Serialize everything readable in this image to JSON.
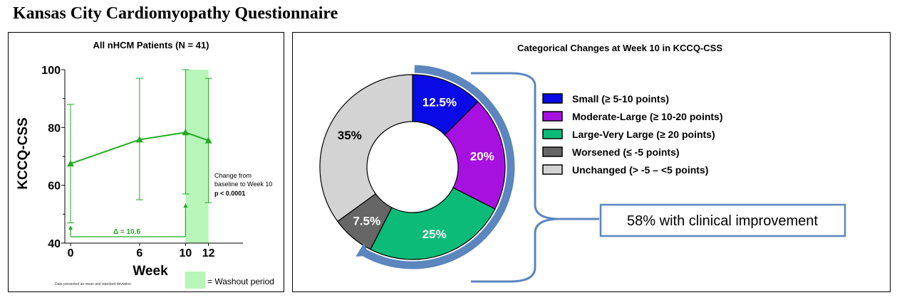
{
  "page_title": "Kansas City Cardiomyopathy Questionnaire",
  "colors": {
    "line": "#22aa22",
    "washout": "#b8f5b8",
    "arrow": "#5b86be",
    "callout_border": "#5b86be"
  },
  "left_chart": {
    "title": "All nHCM Patients (N = 41)",
    "ylabel": "KCCQ-CSS",
    "xlabel": "Week",
    "annotation_line1": "Change from",
    "annotation_line2": "baseline to Week 10",
    "annotation_line3": "p < 0.0001",
    "delta_label": "Δ = 10.6",
    "footnote": "Data presented as mean and standard deviation",
    "legend_label": "= Washout period"
  },
  "right_chart": {
    "title": "Categorical Changes at Week 10 in KCCQ-CSS",
    "callout": "58% with clinical improvement"
  },
  "chart_data": [
    {
      "type": "line",
      "title": "All nHCM Patients (N = 41)",
      "xlabel": "Week",
      "ylabel": "KCCQ-CSS",
      "x": [
        0,
        6,
        10,
        12
      ],
      "xticks": [
        "0",
        "6",
        "10",
        "12"
      ],
      "yticks": [
        "40",
        "60",
        "80",
        "100"
      ],
      "y": [
        67.5,
        75.8,
        78.3,
        75.5
      ],
      "err_upper": [
        88,
        97,
        100,
        97
      ],
      "err_lower": [
        47,
        55,
        57,
        54
      ],
      "xlim": [
        -0.5,
        15
      ],
      "ylim": [
        40,
        100
      ],
      "washout": [
        10,
        12
      ],
      "grid": false
    },
    {
      "type": "pie",
      "title": "Categorical Changes at Week 10 in KCCQ-CSS",
      "legend": "right",
      "slices": [
        {
          "name": "Small (≥ 5-10 points)",
          "label": "12.5%",
          "value": 12.5,
          "color": "#0a0ae6"
        },
        {
          "name": "Moderate-Large (≥ 10-20 points)",
          "label": "20%",
          "value": 20,
          "color": "#a611e0"
        },
        {
          "name": "Large-Very Large (≥ 20 points)",
          "label": "25%",
          "value": 25,
          "color": "#0cbb78"
        },
        {
          "name": "Worsened (≤ -5 points)",
          "label": "7.5%",
          "value": 7.5,
          "color": "#666666"
        },
        {
          "name": "Unchanged (> -5 – <5 points)",
          "label": "35%",
          "value": 35,
          "color": "#d3d3d3"
        }
      ]
    }
  ]
}
